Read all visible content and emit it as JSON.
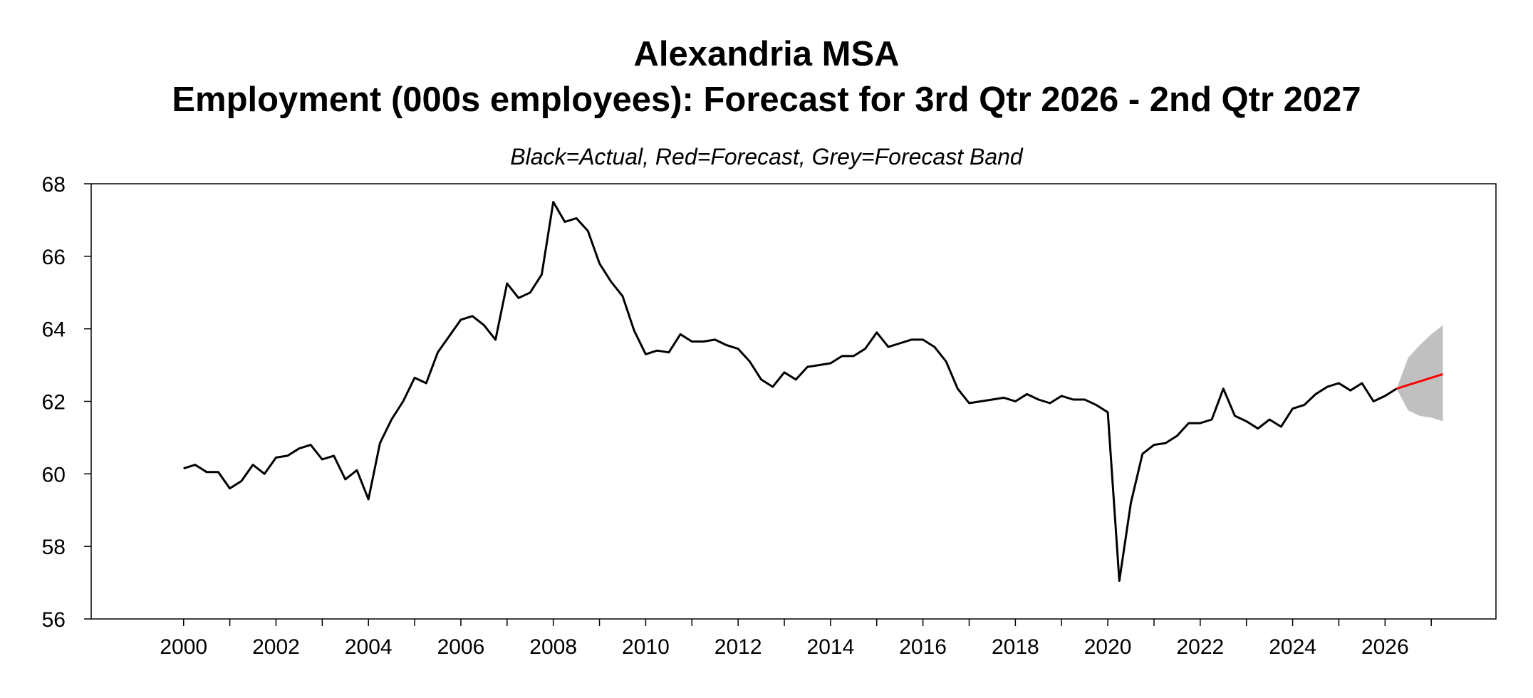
{
  "chart_data": {
    "type": "line",
    "title": "Alexandria MSA",
    "subtitle": "Employment (000s employees): Forecast for 3rd Qtr 2026 - 2nd Qtr 2027",
    "note": "Black=Actual, Red=Forecast, Grey=Forecast Band",
    "xlim": [
      1998.0,
      2028.4
    ],
    "ylim": [
      56,
      68
    ],
    "x_tick_labels": [
      "2000",
      "2002",
      "2004",
      "2006",
      "2008",
      "2010",
      "2012",
      "2014",
      "2016",
      "2018",
      "2020",
      "2022",
      "2024",
      "2026"
    ],
    "y_tick_labels": [
      "56",
      "58",
      "60",
      "62",
      "64",
      "66",
      "68"
    ],
    "grid": false,
    "colors": {
      "actual": "#000000",
      "forecast": "#ff0000",
      "band": "#c0c0c0"
    },
    "series": [
      {
        "role": "actual",
        "x": [
          2000.0,
          2000.25,
          2000.5,
          2000.75,
          2001.0,
          2001.25,
          2001.5,
          2001.75,
          2002.0,
          2002.25,
          2002.5,
          2002.75,
          2003.0,
          2003.25,
          2003.5,
          2003.75,
          2004.0,
          2004.25,
          2004.5,
          2004.75,
          2005.0,
          2005.25,
          2005.5,
          2005.75,
          2006.0,
          2006.25,
          2006.5,
          2006.75,
          2007.0,
          2007.25,
          2007.5,
          2007.75,
          2008.0,
          2008.25,
          2008.5,
          2008.75,
          2009.0,
          2009.25,
          2009.5,
          2009.75,
          2010.0,
          2010.25,
          2010.5,
          2010.75,
          2011.0,
          2011.25,
          2011.5,
          2011.75,
          2012.0,
          2012.25,
          2012.5,
          2012.75,
          2013.0,
          2013.25,
          2013.5,
          2013.75,
          2014.0,
          2014.25,
          2014.5,
          2014.75,
          2015.0,
          2015.25,
          2015.5,
          2015.75,
          2016.0,
          2016.25,
          2016.5,
          2016.75,
          2017.0,
          2017.25,
          2017.5,
          2017.75,
          2018.0,
          2018.25,
          2018.5,
          2018.75,
          2019.0,
          2019.25,
          2019.5,
          2019.75,
          2020.0,
          2020.25,
          2020.5,
          2020.75,
          2021.0,
          2021.25,
          2021.5,
          2021.75,
          2022.0,
          2022.25,
          2022.5,
          2022.75,
          2023.0,
          2023.25,
          2023.5,
          2023.75,
          2024.0,
          2024.25,
          2024.5,
          2024.75,
          2025.0,
          2025.25,
          2025.5,
          2025.75,
          2026.0,
          2026.25
        ],
        "values": [
          60.15,
          60.25,
          60.05,
          60.05,
          59.6,
          59.8,
          60.25,
          60.0,
          60.45,
          60.5,
          60.7,
          60.8,
          60.4,
          60.5,
          59.85,
          60.1,
          59.3,
          60.85,
          61.5,
          62.0,
          62.65,
          62.5,
          63.35,
          63.8,
          64.25,
          64.35,
          64.1,
          63.7,
          65.25,
          64.85,
          65.0,
          65.5,
          67.5,
          66.95,
          67.05,
          66.7,
          65.8,
          65.3,
          64.9,
          63.95,
          63.3,
          63.4,
          63.35,
          63.85,
          63.65,
          63.65,
          63.7,
          63.55,
          63.45,
          63.1,
          62.6,
          62.4,
          62.8,
          62.6,
          62.95,
          63.0,
          63.05,
          63.25,
          63.25,
          63.45,
          63.9,
          63.5,
          63.6,
          63.7,
          63.7,
          63.5,
          63.1,
          62.35,
          61.95,
          62.0,
          62.05,
          62.1,
          62.0,
          62.2,
          62.05,
          61.95,
          62.15,
          62.05,
          62.05,
          61.9,
          61.7,
          57.05,
          59.2,
          60.55,
          60.8,
          60.85,
          61.05,
          61.4,
          61.4,
          61.5,
          62.35,
          61.6,
          61.45,
          61.25,
          61.5,
          61.3,
          61.8,
          61.9,
          62.2,
          62.4,
          62.5,
          62.3,
          62.5,
          62.0,
          62.15,
          62.35
        ]
      },
      {
        "role": "forecast",
        "x": [
          2026.25,
          2026.5,
          2026.75,
          2027.0,
          2027.25
        ],
        "values": [
          62.35,
          62.45,
          62.55,
          62.65,
          62.75
        ]
      }
    ],
    "band": {
      "x": [
        2026.25,
        2026.5,
        2026.75,
        2027.0,
        2027.25
      ],
      "lower": [
        62.35,
        61.75,
        61.6,
        61.55,
        61.45
      ],
      "upper": [
        62.35,
        63.2,
        63.55,
        63.85,
        64.1
      ]
    }
  }
}
